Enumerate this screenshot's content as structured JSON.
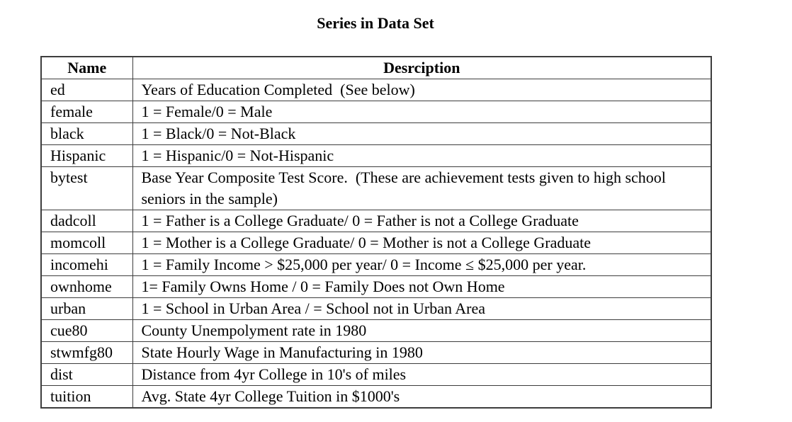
{
  "title": "Series in Data Set",
  "table": {
    "headers": {
      "name": "Name",
      "description": "Desrciption"
    },
    "rows": [
      {
        "name": "ed",
        "description": "Years of Education Completed  (See below)"
      },
      {
        "name": "female",
        "description": "1 = Female/0 = Male"
      },
      {
        "name": "black",
        "description": "1 = Black/0 = Not-Black"
      },
      {
        "name": "Hispanic",
        "description": "1 = Hispanic/0 = Not-Hispanic"
      },
      {
        "name": "bytest",
        "description": "Base Year Composite Test Score.  (These are achievement tests given to high school seniors in the sample)"
      },
      {
        "name": "dadcoll",
        "description": "1 = Father is a College Graduate/ 0 = Father is not a College Graduate"
      },
      {
        "name": "momcoll",
        "description": "1 = Mother is a College Graduate/ 0 = Mother is not a College Graduate"
      },
      {
        "name": "incomehi",
        "description": "1 = Family Income > $25,000 per year/ 0 = Income ≤ $25,000 per year."
      },
      {
        "name": "ownhome",
        "description": "1= Family Owns Home / 0 = Family Does not Own Home"
      },
      {
        "name": "urban",
        "description": "1 = School in Urban Area / = School not in Urban Area"
      },
      {
        "name": "cue80",
        "description": "County Unempolyment rate in 1980"
      },
      {
        "name": "stwmfg80",
        "description": "State Hourly Wage in Manufacturing in 1980"
      },
      {
        "name": "dist",
        "description": "Distance from 4yr College in 10's of miles"
      },
      {
        "name": "tuition",
        "description": "Avg. State 4yr College Tuition in $1000's"
      }
    ]
  },
  "colors": {
    "background": "#ffffff",
    "border": "#3d3d3d",
    "text": "#000000"
  }
}
